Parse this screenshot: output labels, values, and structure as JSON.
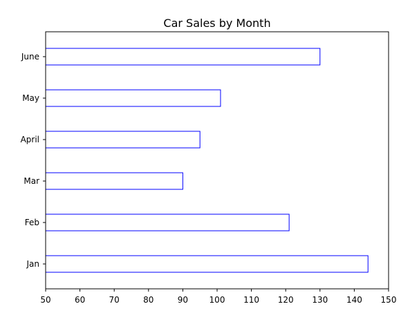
{
  "chart_data": {
    "type": "bar",
    "orientation": "horizontal",
    "title": "Car Sales by Month",
    "xlabel": "",
    "ylabel": "",
    "categories": [
      "Jan",
      "Feb",
      "Mar",
      "April",
      "May",
      "June"
    ],
    "values": [
      144,
      121,
      90,
      95,
      101,
      130
    ],
    "xlim": [
      50,
      150
    ],
    "xticks": [
      50,
      60,
      70,
      80,
      90,
      100,
      110,
      120,
      130,
      140,
      150
    ],
    "grid": false,
    "legend": "none",
    "bar_fill": "#ffffff",
    "bar_edge_color": "#0000ff"
  }
}
